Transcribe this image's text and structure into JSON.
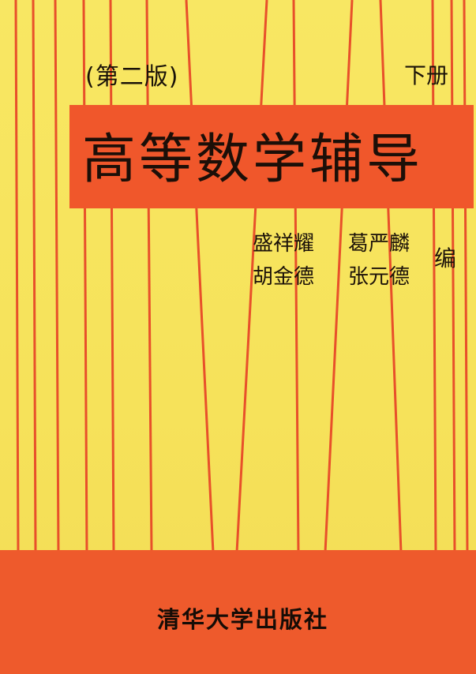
{
  "cover": {
    "edition": "(第二版)",
    "volume": "下册",
    "title": "高等数学辅导",
    "authors": [
      "盛祥耀",
      "葛严麟",
      "胡金德",
      "张元德"
    ],
    "author_role": "编",
    "publisher": "清华大学出版社",
    "colors": {
      "background": "#f7e35a",
      "band": "#f0572b",
      "stripe": "#e8502a",
      "text": "#1c1209"
    }
  }
}
